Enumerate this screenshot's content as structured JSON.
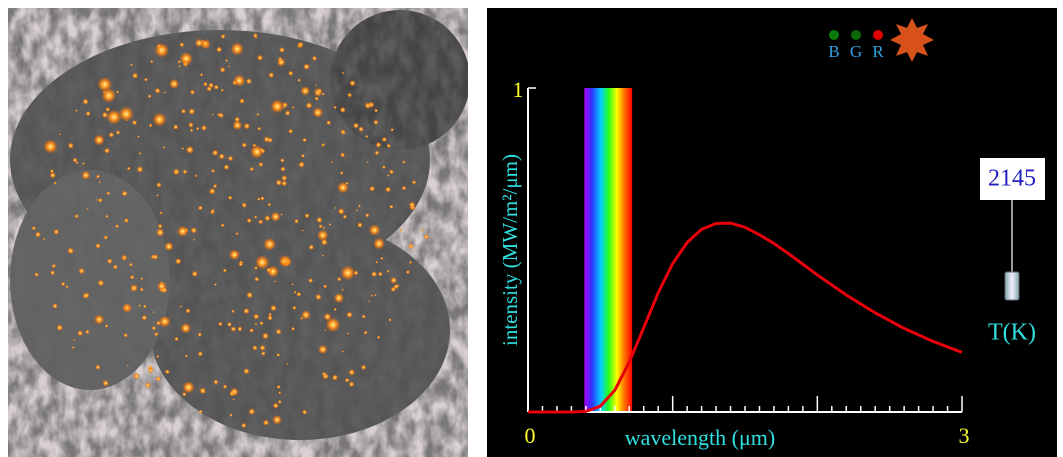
{
  "chart_data": {
    "type": "line",
    "y_label": "intensity (MW/m²/μm)",
    "x_label": "wavelength (μm)",
    "x": [
      0,
      0.1,
      0.2,
      0.3,
      0.4,
      0.5,
      0.6,
      0.7,
      0.8,
      0.9,
      1.0,
      1.1,
      1.2,
      1.3,
      1.4,
      1.5,
      1.6,
      1.7,
      1.8,
      1.9,
      2.0,
      2.2,
      2.4,
      2.6,
      2.8,
      3.0
    ],
    "series": [
      {
        "color": "#e8000b",
        "values": [
          0,
          0,
          0,
          0,
          0.002,
          0.018,
          0.067,
          0.154,
          0.26,
          0.368,
          0.458,
          0.523,
          0.564,
          0.582,
          0.583,
          0.57,
          0.547,
          0.52,
          0.489,
          0.456,
          0.423,
          0.361,
          0.306,
          0.258,
          0.218,
          0.184
        ]
      }
    ],
    "xlim": [
      0,
      3
    ],
    "ylim": [
      0,
      1
    ],
    "xticks": [
      0,
      3
    ],
    "yticks": [
      1
    ],
    "xticks_major_unlabeled": [
      1,
      2
    ],
    "xticks_minor": [
      0.1,
      0.2,
      0.3,
      0.4,
      0.5,
      0.6,
      0.7,
      0.8,
      0.9,
      1.1,
      1.2,
      1.3,
      1.4,
      1.5,
      1.6,
      1.7,
      1.8,
      1.9,
      2.1,
      2.2,
      2.3,
      2.4,
      2.5,
      2.6,
      2.7,
      2.8,
      2.9
    ],
    "visible_band": [
      0.39,
      0.72
    ],
    "temperature_value": "2145",
    "temperature_label": "T(K)",
    "color_indicators": [
      {
        "label": "B",
        "color": "#0a7a0a"
      },
      {
        "label": "G",
        "color": "#0a6a0a"
      },
      {
        "label": "R",
        "color": "#e00000"
      }
    ]
  }
}
